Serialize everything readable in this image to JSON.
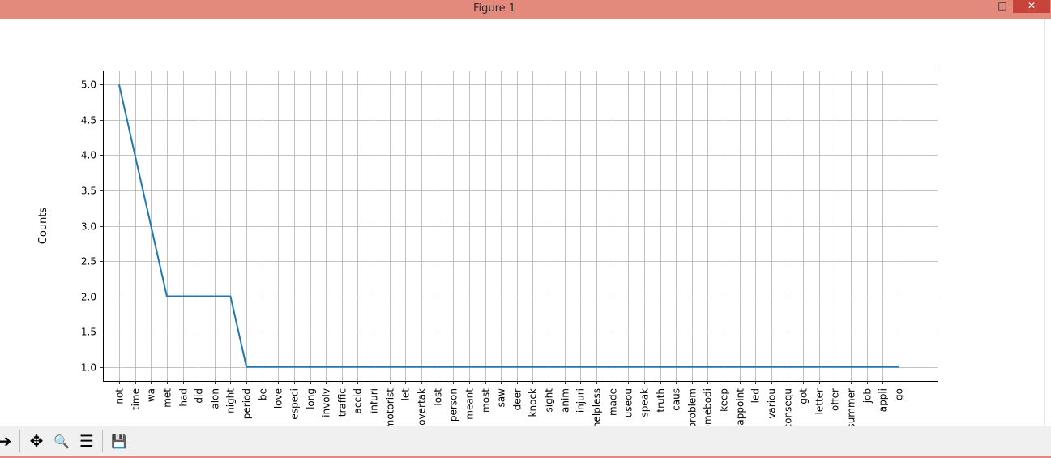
{
  "window": {
    "title": "Figure 1",
    "controls": {
      "minimize": "–",
      "maximize": "□",
      "close": "✕"
    }
  },
  "toolbar": {
    "buttons": [
      {
        "name": "forward",
        "icon": "arrow-right-icon",
        "glyph": "➔"
      },
      {
        "name": "pan",
        "icon": "move-icon",
        "glyph": "✥"
      },
      {
        "name": "zoom",
        "icon": "magnifier-icon",
        "glyph": "🔍"
      },
      {
        "name": "configure",
        "icon": "sliders-icon",
        "glyph": "☰"
      },
      {
        "name": "save",
        "icon": "floppy-icon",
        "glyph": "💾"
      }
    ]
  },
  "colors": {
    "line": "#1f77b4",
    "grid": "#b0b0b0"
  },
  "chart_data": {
    "type": "line",
    "title": "",
    "xlabel": "",
    "ylabel": "Counts",
    "ylim": [
      0.8,
      5.2
    ],
    "yticks": [
      1.0,
      1.5,
      2.0,
      2.5,
      3.0,
      3.5,
      4.0,
      4.5,
      5.0
    ],
    "ytick_labels": [
      "1.0",
      "1.5",
      "2.0",
      "2.5",
      "3.0",
      "3.5",
      "4.0",
      "4.5",
      "5.0"
    ],
    "grid": true,
    "categories": [
      "not",
      "time",
      "wa",
      "met",
      "had",
      "did",
      "alon",
      "night",
      "period",
      "be",
      "love",
      "especi",
      "long",
      "involv",
      "traffic",
      "accid",
      "infuri",
      "motorist",
      "let",
      "overtak",
      "lost",
      "person",
      "meant",
      "most",
      "saw",
      "deer",
      "knock",
      "sight",
      "anim",
      "injuri",
      "helpless",
      "made",
      "useou",
      "speak",
      "truth",
      "caus",
      "problem",
      "somebodi",
      "keep",
      "appoint",
      "led",
      "variou",
      "consequ",
      "got",
      "letter",
      "offer",
      "summer",
      "job",
      "appli",
      "go"
    ],
    "values": [
      5,
      4,
      3,
      2,
      2,
      2,
      2,
      2,
      1,
      1,
      1,
      1,
      1,
      1,
      1,
      1,
      1,
      1,
      1,
      1,
      1,
      1,
      1,
      1,
      1,
      1,
      1,
      1,
      1,
      1,
      1,
      1,
      1,
      1,
      1,
      1,
      1,
      1,
      1,
      1,
      1,
      1,
      1,
      1,
      1,
      1,
      1,
      1,
      1,
      1
    ]
  }
}
